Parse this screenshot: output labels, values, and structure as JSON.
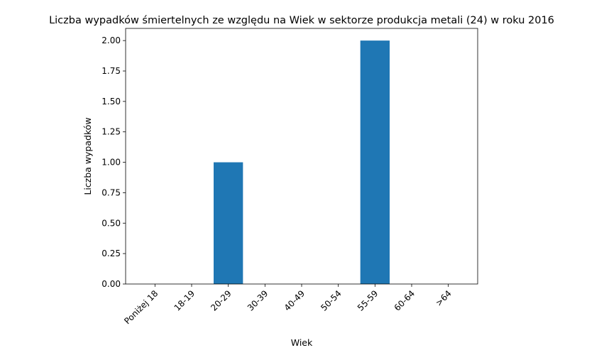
{
  "chart_data": {
    "type": "bar",
    "title": "Liczba wypadków śmiertelnych ze względu na Wiek w sektorze produkcja metali (24)   w roku 2016",
    "xlabel": "Wiek",
    "ylabel": "Liczba wypadków",
    "categories": [
      "Poniżej 18",
      "18-19",
      "20-29",
      "30-39",
      "40-49",
      "50-54",
      "55-59",
      "60-64",
      ">64"
    ],
    "values": [
      0,
      0,
      1,
      0,
      0,
      0,
      2,
      0,
      0
    ],
    "ylim": [
      0,
      2.1
    ],
    "yticks": [
      "0.00",
      "0.25",
      "0.50",
      "0.75",
      "1.00",
      "1.25",
      "1.50",
      "1.75",
      "2.00"
    ],
    "bar_color": "#1f77b4",
    "grid": false,
    "legend": "none"
  }
}
